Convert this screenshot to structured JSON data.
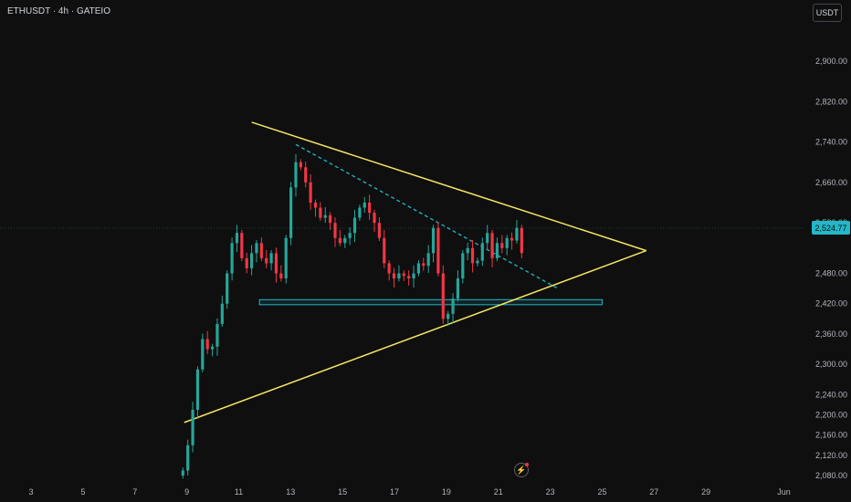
{
  "header": {
    "symbol": "ETHUSDT · 4h · GATEIO",
    "currency_button": "USDT"
  },
  "last_price_label": "2,524.77",
  "colors": {
    "up": "#26a69a",
    "down": "#f23645",
    "trendline": "#f5e663",
    "dashed": "#22b8c9",
    "zone": "#22b8c9"
  },
  "icons": {
    "alert": "lightning-bolt-icon"
  },
  "chart_data": {
    "type": "candlestick",
    "timeframe": "4h",
    "y_ticks": [
      2080,
      2120,
      2160,
      2200,
      2240,
      2300,
      2360,
      2420,
      2480,
      2580,
      2660,
      2740,
      2820,
      2900
    ],
    "y_tick_labels": [
      "2,080.00",
      "2,120.00",
      "2,160.00",
      "2,200.00",
      "2,240.00",
      "2,300.00",
      "2,360.00",
      "2,420.00",
      "2,480.00",
      "2,580.00",
      "2,660.00",
      "2,740.00",
      "2,820.00",
      "2,900.00"
    ],
    "x_ticks": [
      3,
      5,
      7,
      9,
      11,
      13,
      15,
      17,
      19,
      21,
      23,
      25,
      27,
      29,
      32
    ],
    "x_tick_labels": [
      "3",
      "5",
      "7",
      "9",
      "11",
      "13",
      "15",
      "17",
      "19",
      "21",
      "23",
      "25",
      "27",
      "29",
      "Jun"
    ],
    "last_price": 2524.77,
    "closes": [
      2090,
      2140,
      2210,
      2290,
      2350,
      2330,
      2335,
      2380,
      2420,
      2480,
      2540,
      2560,
      2510,
      2490,
      2520,
      2540,
      2510,
      2500,
      2520,
      2480,
      2470,
      2550,
      2650,
      2700,
      2690,
      2660,
      2620,
      2610,
      2590,
      2595,
      2580,
      2550,
      2540,
      2550,
      2560,
      2590,
      2610,
      2620,
      2600,
      2580,
      2550,
      2500,
      2480,
      2470,
      2480,
      2475,
      2470,
      2480,
      2500,
      2495,
      2520,
      2570,
      2480,
      2390,
      2400,
      2430,
      2470,
      2520,
      2530,
      2500,
      2505,
      2540,
      2560,
      2510,
      2540,
      2530,
      2550,
      2545,
      2570,
      2520
    ],
    "drawings": {
      "upper_trendline": [
        [
          11.5,
          2779
        ],
        [
          26.7,
          2525
        ]
      ],
      "lower_trendline": [
        [
          8.9,
          2185
        ],
        [
          26.7,
          2525
        ]
      ],
      "dashed_trendline": [
        [
          13.2,
          2735
        ],
        [
          23.3,
          2450
        ]
      ],
      "support_zone": {
        "x": [
          11.8,
          25.0
        ],
        "y_low": 2418,
        "y_high": 2428
      }
    }
  }
}
